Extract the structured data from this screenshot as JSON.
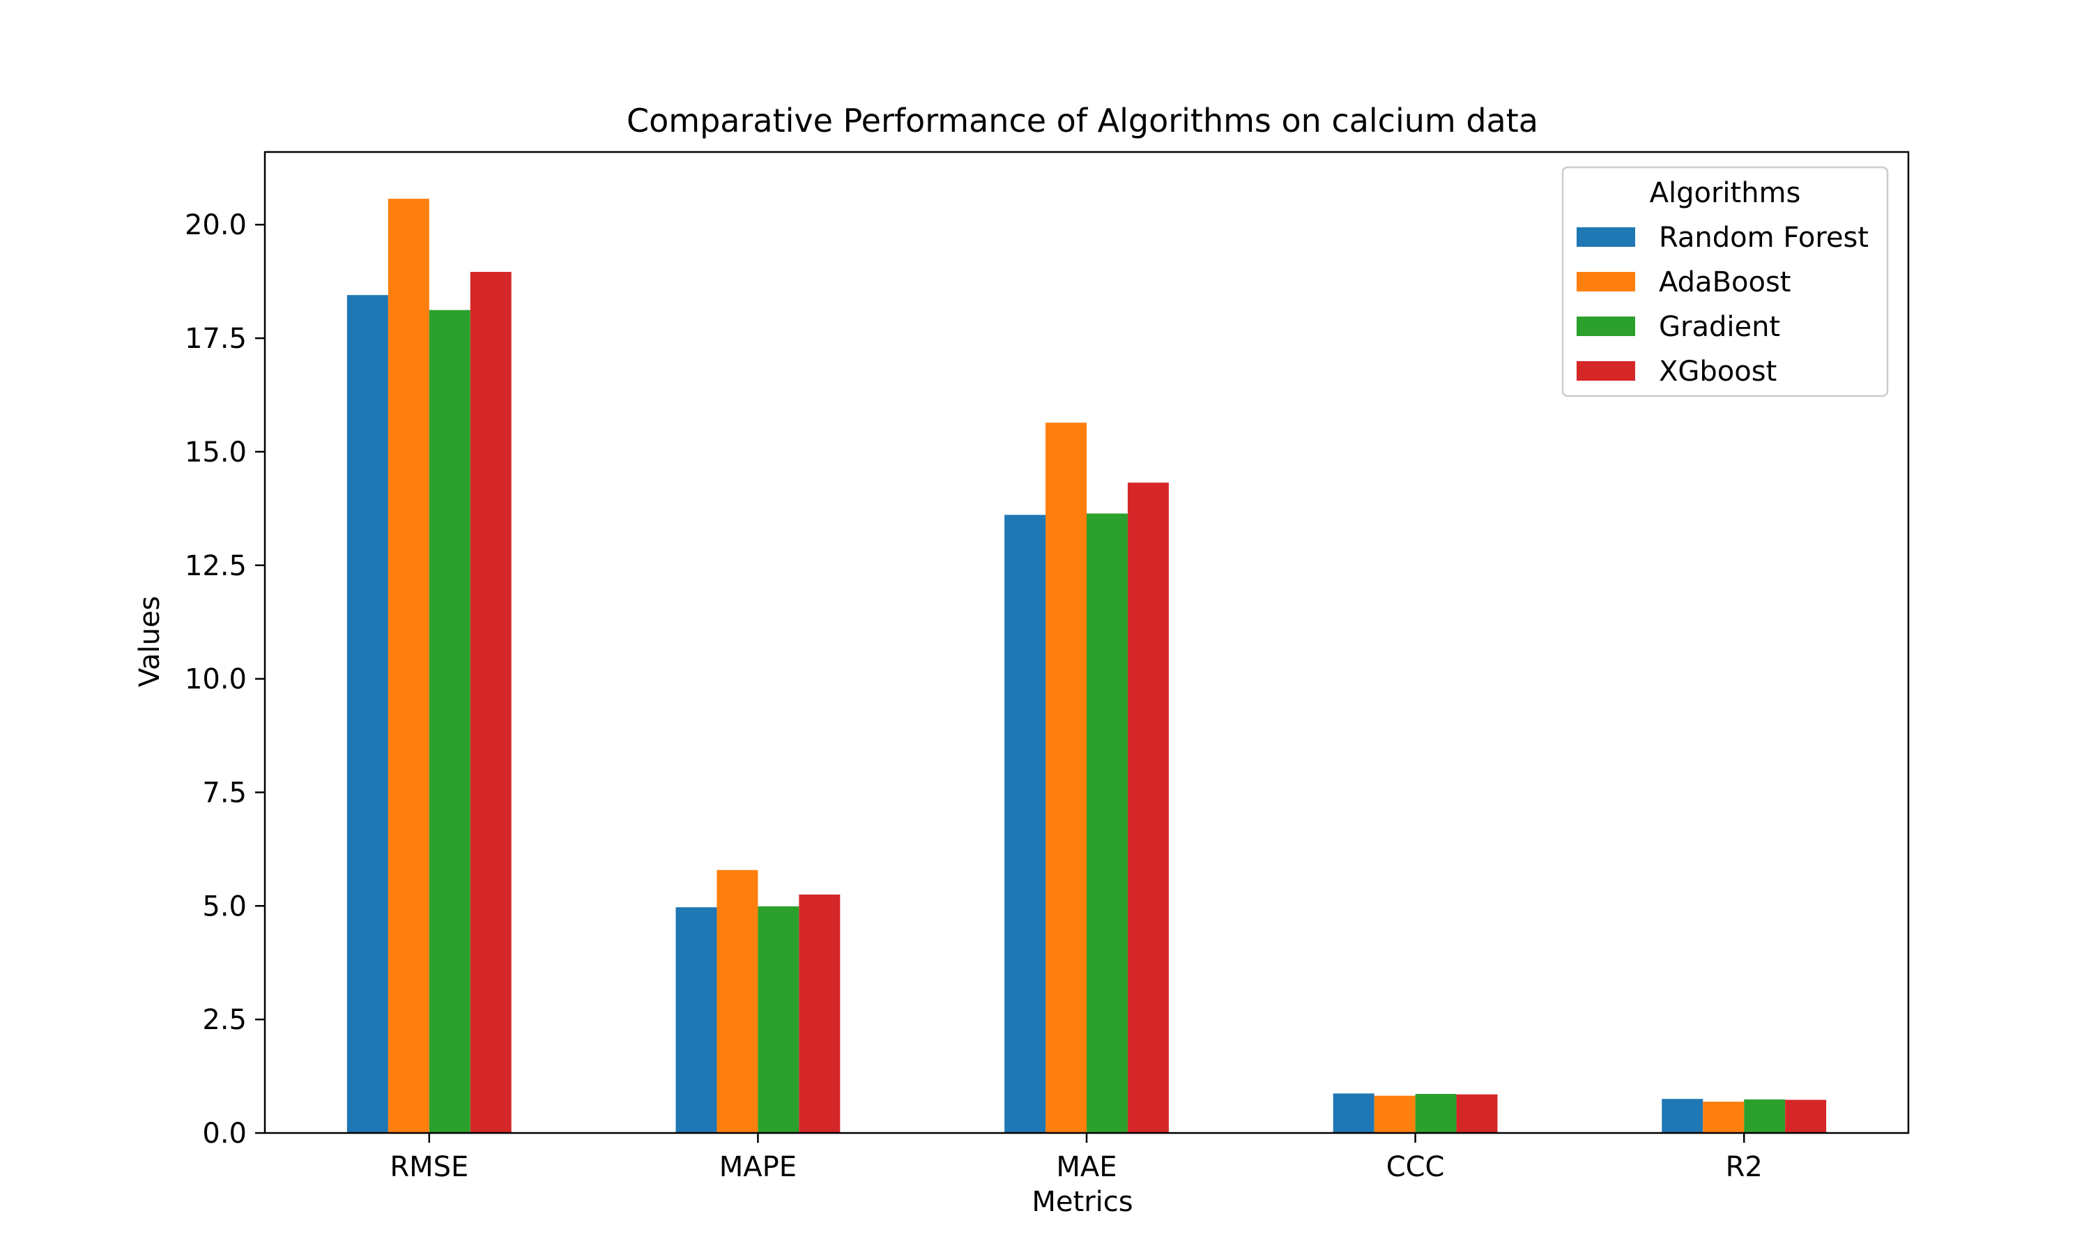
{
  "chart_data": {
    "type": "bar",
    "title": "Comparative Performance of Algorithms on calcium data",
    "xlabel": "Metrics",
    "ylabel": "Values",
    "categories": [
      "RMSE",
      "MAPE",
      "MAE",
      "CCC",
      "R2"
    ],
    "series": [
      {
        "name": "Random Forest",
        "color": "#1f77b4",
        "values": [
          18.45,
          4.97,
          13.61,
          0.87,
          0.75
        ]
      },
      {
        "name": "AdaBoost",
        "color": "#ff7f0e",
        "values": [
          20.57,
          5.79,
          15.64,
          0.82,
          0.69
        ]
      },
      {
        "name": "Gradient",
        "color": "#2ca02c",
        "values": [
          18.12,
          4.99,
          13.64,
          0.86,
          0.74
        ]
      },
      {
        "name": "XGboost",
        "color": "#d62728",
        "values": [
          18.96,
          5.25,
          14.32,
          0.85,
          0.73
        ]
      }
    ],
    "ylim": [
      0,
      21.6
    ],
    "yticks": [
      "0.0",
      "2.5",
      "5.0",
      "7.5",
      "10.0",
      "12.5",
      "15.0",
      "17.5",
      "20.0"
    ],
    "legend": {
      "title": "Algorithms",
      "placement": "top-right"
    },
    "grid": false
  }
}
